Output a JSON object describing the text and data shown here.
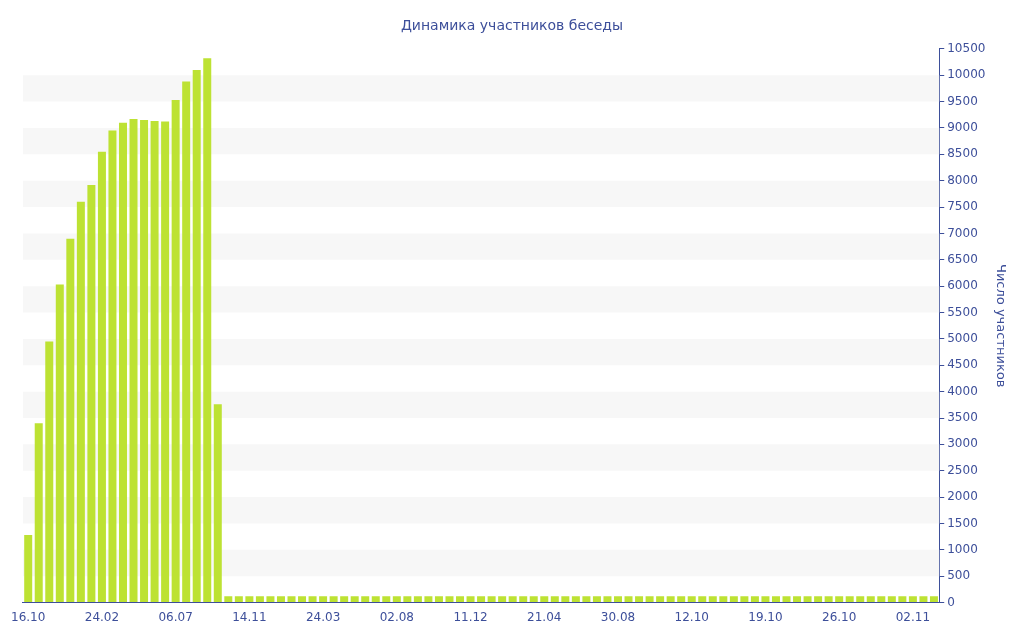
{
  "chart_data": {
    "type": "bar",
    "title": "Динамика участников беседы",
    "ylabel": "Число участников",
    "categories": [
      "16.10",
      null,
      null,
      null,
      null,
      null,
      null,
      "24.02",
      null,
      null,
      null,
      null,
      null,
      null,
      "06.07",
      null,
      null,
      null,
      null,
      null,
      null,
      "14.11",
      null,
      null,
      null,
      null,
      null,
      null,
      "24.03",
      null,
      null,
      null,
      null,
      null,
      null,
      "02.08",
      null,
      null,
      null,
      null,
      null,
      null,
      "11.12",
      null,
      null,
      null,
      null,
      null,
      null,
      "21.04",
      null,
      null,
      null,
      null,
      null,
      null,
      "30.08",
      null,
      null,
      null,
      null,
      null,
      null,
      "12.10",
      null,
      null,
      null,
      null,
      null,
      null,
      "19.10",
      null,
      null,
      null,
      null,
      null,
      null,
      "26.10",
      null,
      null,
      null,
      null,
      null,
      null,
      "02.11",
      null,
      null
    ],
    "values": [
      1280,
      3400,
      4950,
      6030,
      6900,
      7600,
      7920,
      8550,
      8950,
      9100,
      9170,
      9150,
      9130,
      9120,
      9530,
      9880,
      10100,
      10320,
      3760,
      120,
      120,
      120,
      120,
      120,
      120,
      120,
      120,
      120,
      120,
      120,
      120,
      120,
      120,
      120,
      120,
      120,
      120,
      120,
      120,
      120,
      120,
      120,
      120,
      120,
      120,
      120,
      120,
      120,
      120,
      120,
      120,
      120,
      120,
      120,
      120,
      120,
      120,
      120,
      120,
      120,
      120,
      120,
      120,
      120,
      120,
      120,
      120,
      120,
      120,
      120,
      120,
      120,
      120,
      120,
      120,
      120,
      120,
      120,
      120,
      120,
      120,
      120,
      120,
      120,
      120,
      120,
      120
    ],
    "color": "#bde233",
    "ylim": [
      0,
      10500
    ],
    "yticks": [
      0,
      500,
      1000,
      1500,
      2000,
      2500,
      3000,
      3500,
      4000,
      4500,
      5000,
      5500,
      6000,
      6500,
      7000,
      7500,
      8000,
      8500,
      9000,
      9500,
      10000,
      10500
    ],
    "bands": [
      {
        "axis": "y",
        "from": 500,
        "to": 1000,
        "color": "#f7f7f7"
      },
      {
        "axis": "y",
        "from": 1500,
        "to": 2000,
        "color": "#f7f7f7"
      },
      {
        "axis": "y",
        "from": 2500,
        "to": 3000,
        "color": "#f7f7f7"
      },
      {
        "axis": "y",
        "from": 3500,
        "to": 4000,
        "color": "#f7f7f7"
      },
      {
        "axis": "y",
        "from": 4500,
        "to": 5000,
        "color": "#f7f7f7"
      },
      {
        "axis": "y",
        "from": 5500,
        "to": 6000,
        "color": "#f7f7f7"
      },
      {
        "axis": "y",
        "from": 6500,
        "to": 7000,
        "color": "#f7f7f7"
      },
      {
        "axis": "y",
        "from": 7500,
        "to": 8000,
        "color": "#f7f7f7"
      },
      {
        "axis": "y",
        "from": 8500,
        "to": 9000,
        "color": "#f7f7f7"
      },
      {
        "axis": "y",
        "from": 9500,
        "to": 10000,
        "color": "#f7f7f7"
      }
    ]
  }
}
